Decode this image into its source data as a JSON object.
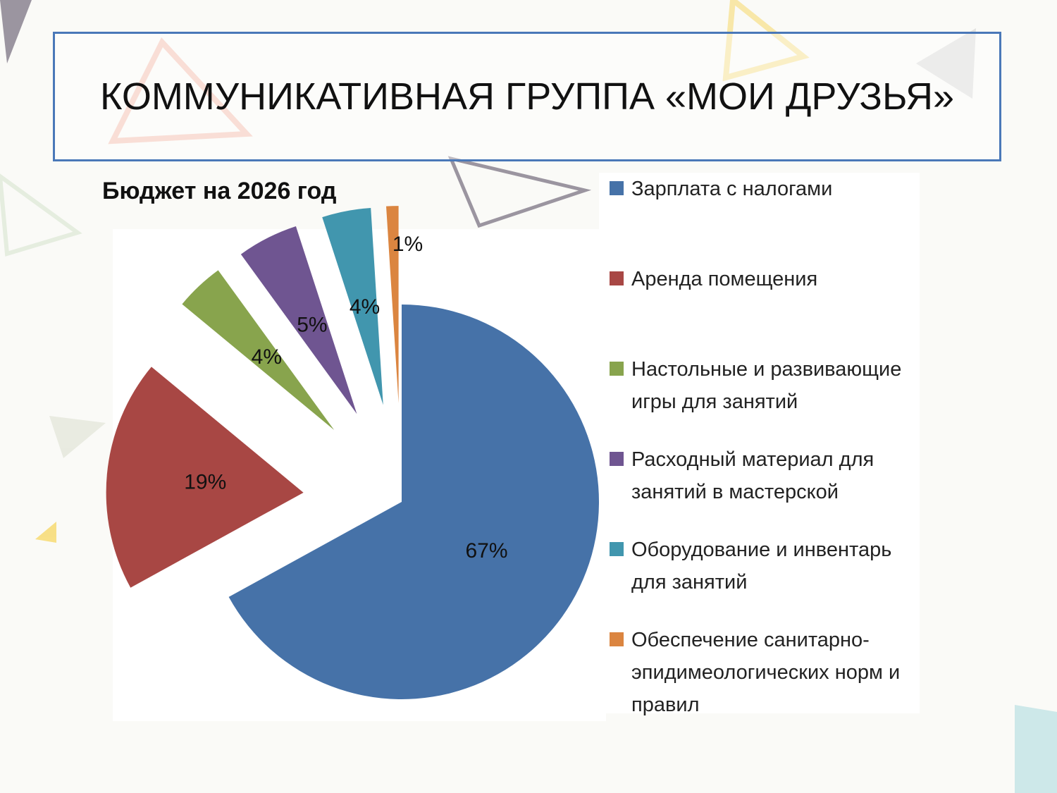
{
  "slide_title": "КОММУНИКАТИВНАЯ ГРУППА «МОИ ДРУЗЬЯ»",
  "chart_data": {
    "type": "pie",
    "title": "Бюджет на 2026 год",
    "categories": [
      "Зарплата с налогами",
      "Аренда помещения",
      "Настольные и развивающие игры для занятий",
      "Расходный материал для занятий в мастерской",
      "Оборудование и инвентарь для занятий",
      "Обеспечение санитарно-эпидимеологических норм и правил"
    ],
    "values": [
      67,
      19,
      4,
      5,
      4,
      1
    ],
    "value_labels": [
      "67%",
      "19%",
      "4%",
      "5%",
      "4%",
      "1%"
    ],
    "colors": [
      "#4672a8",
      "#a84744",
      "#88a44d",
      "#6f5591",
      "#4196ae",
      "#db8540"
    ],
    "legend": "right"
  }
}
